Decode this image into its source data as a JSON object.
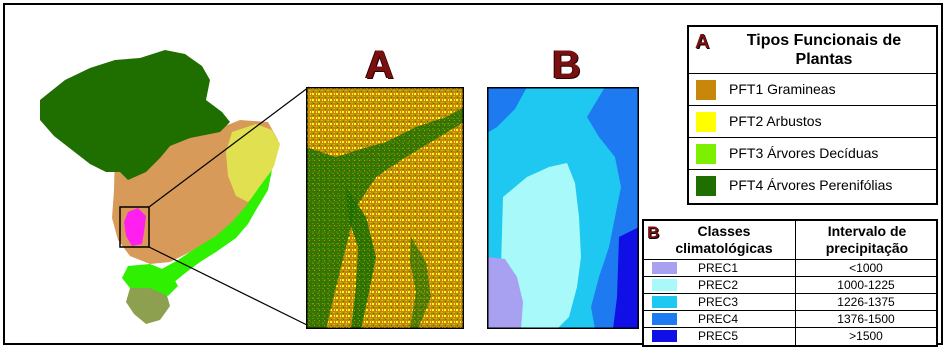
{
  "panels": {
    "a_label": "A",
    "b_label": "B"
  },
  "legend_a": {
    "letter": "A",
    "title": "Tipos Funcionais de Plantas",
    "items": [
      {
        "label": "PFT1 Gramineas",
        "color": "#c8860a"
      },
      {
        "label": "PFT2 Arbustos",
        "color": "#ffff00"
      },
      {
        "label": "PFT3 Árvores Decíduas",
        "color": "#7cf000"
      },
      {
        "label": "PFT4 Árvores Perenifólias",
        "color": "#1e6e00"
      }
    ]
  },
  "legend_b": {
    "letter": "B",
    "col1": "Classes climatológicas",
    "col2": "Intervalo de precipitação",
    "items": [
      {
        "label": "PREC1",
        "range": "<1000",
        "color": "#a8a0f0"
      },
      {
        "label": "PREC2",
        "range": "1000-1225",
        "color": "#a8fafa"
      },
      {
        "label": "PREC3",
        "range": "1226-1375",
        "color": "#1ec8f0"
      },
      {
        "label": "PREC4",
        "range": "1376-1500",
        "color": "#1e7af0"
      },
      {
        "label": "PREC5",
        "range": ">1500",
        "color": "#1010e6"
      }
    ]
  },
  "map_colors": {
    "amazon": "#1e6e00",
    "cerrado": "#d89a58",
    "caatinga": "#e0e050",
    "atlantic": "#2ef000",
    "pampa": "#8ca050",
    "study_area": "#ff20f0"
  }
}
